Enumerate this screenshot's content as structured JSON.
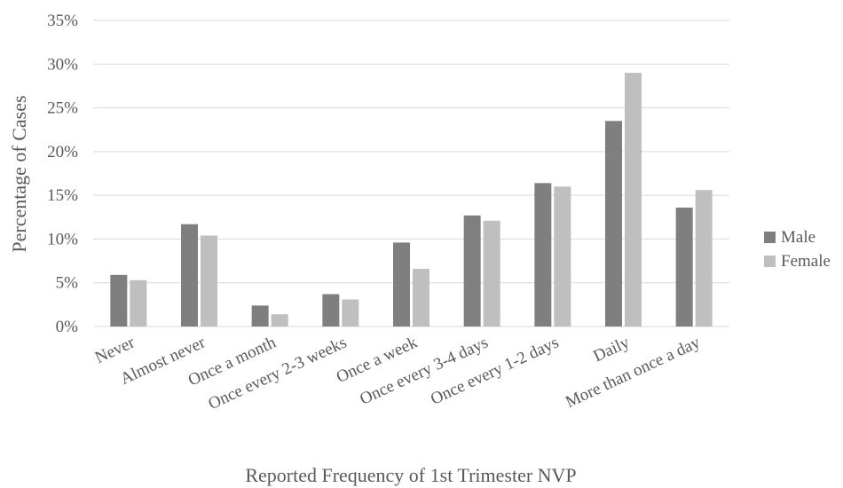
{
  "chart_data": {
    "type": "bar",
    "title": "",
    "xlabel": "Reported Frequency of 1st Trimester NVP",
    "ylabel": "Percentage of Cases",
    "ylim": [
      0,
      35
    ],
    "yticks": [
      0,
      5,
      10,
      15,
      20,
      25,
      30,
      35
    ],
    "ytick_labels": [
      "0%",
      "5%",
      "10%",
      "15%",
      "20%",
      "25%",
      "30%",
      "35%"
    ],
    "grid": true,
    "legend_position": "right",
    "categories": [
      "Never",
      "Almost never",
      "Once a month",
      "Once every 2-3 weeks",
      "Once a week",
      "Once every 3-4 days",
      "Once every 1-2 days",
      "Daily",
      "More than once a day"
    ],
    "series": [
      {
        "name": "Male",
        "color": "#7f7f7f",
        "values": [
          5.9,
          11.7,
          2.4,
          3.7,
          9.6,
          12.7,
          16.4,
          23.5,
          13.6
        ]
      },
      {
        "name": "Female",
        "color": "#bfbfbf",
        "values": [
          5.3,
          10.4,
          1.4,
          3.1,
          6.6,
          12.1,
          16.0,
          29.0,
          15.6
        ]
      }
    ]
  }
}
